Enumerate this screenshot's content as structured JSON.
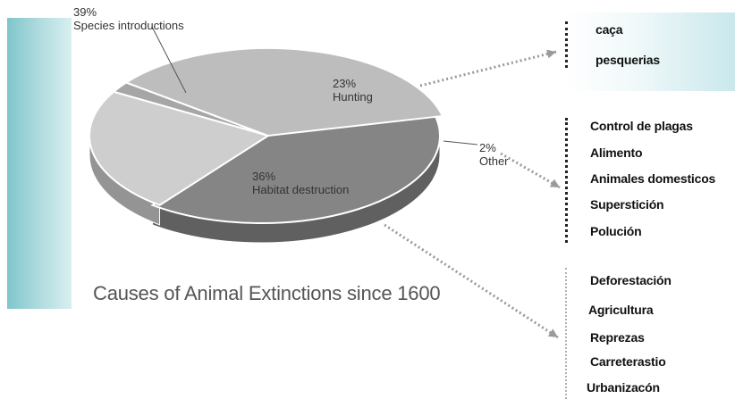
{
  "chart_data": {
    "type": "pie",
    "title": "Causes of Animal Extinctions since 1600",
    "slices": [
      {
        "label": "Species introductions",
        "pct_text": "39%",
        "value": 39,
        "color": "#858585"
      },
      {
        "label": "Hunting",
        "pct_text": "23%",
        "value": 23,
        "color": "#cecece"
      },
      {
        "label": "Other",
        "pct_text": "2%",
        "value": 2,
        "color": "#a6a6a6"
      },
      {
        "label": "Habitat destruction",
        "pct_text": "36%",
        "value": 36,
        "color": "#bdbdbd"
      }
    ]
  },
  "groups": {
    "hunting": [
      "caça",
      "pesquerias"
    ],
    "other": [
      "Control de plagas",
      "Alimento",
      "Animales domesticos",
      "Superstición",
      "Polución"
    ],
    "habitat": [
      "Deforestación",
      "Agricultura",
      "Reprezas",
      "Carreterastio",
      "Urbanizacón"
    ]
  }
}
